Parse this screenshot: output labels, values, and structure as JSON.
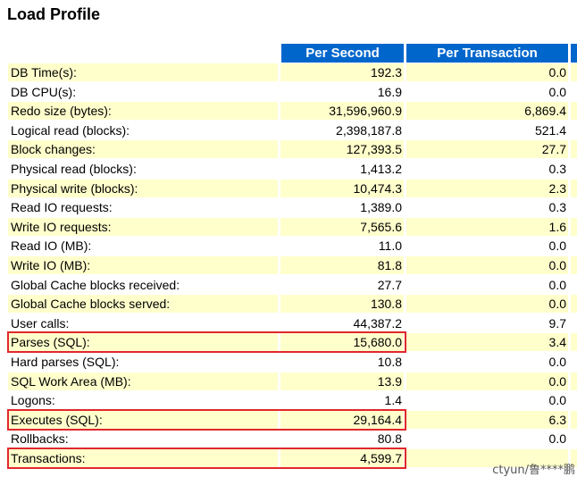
{
  "title": "Load Profile",
  "columns": {
    "per_second": "Per Second",
    "per_transaction": "Per Transaction"
  },
  "rows": [
    {
      "label": "DB Time(s):",
      "per_second": "192.3",
      "per_transaction": "0.0"
    },
    {
      "label": "DB CPU(s):",
      "per_second": "16.9",
      "per_transaction": "0.0"
    },
    {
      "label": "Redo size (bytes):",
      "per_second": "31,596,960.9",
      "per_transaction": "6,869.4"
    },
    {
      "label": "Logical read (blocks):",
      "per_second": "2,398,187.8",
      "per_transaction": "521.4"
    },
    {
      "label": "Block changes:",
      "per_second": "127,393.5",
      "per_transaction": "27.7"
    },
    {
      "label": "Physical read (blocks):",
      "per_second": "1,413.2",
      "per_transaction": "0.3"
    },
    {
      "label": "Physical write (blocks):",
      "per_second": "10,474.3",
      "per_transaction": "2.3"
    },
    {
      "label": "Read IO requests:",
      "per_second": "1,389.0",
      "per_transaction": "0.3"
    },
    {
      "label": "Write IO requests:",
      "per_second": "7,565.6",
      "per_transaction": "1.6"
    },
    {
      "label": "Read IO (MB):",
      "per_second": "11.0",
      "per_transaction": "0.0"
    },
    {
      "label": "Write IO (MB):",
      "per_second": "81.8",
      "per_transaction": "0.0"
    },
    {
      "label": "Global Cache blocks received:",
      "per_second": "27.7",
      "per_transaction": "0.0"
    },
    {
      "label": "Global Cache blocks served:",
      "per_second": "130.8",
      "per_transaction": "0.0"
    },
    {
      "label": "User calls:",
      "per_second": "44,387.2",
      "per_transaction": "9.7"
    },
    {
      "label": "Parses (SQL):",
      "per_second": "15,680.0",
      "per_transaction": "3.4"
    },
    {
      "label": "Hard parses (SQL):",
      "per_second": "10.8",
      "per_transaction": "0.0"
    },
    {
      "label": "SQL Work Area (MB):",
      "per_second": "13.9",
      "per_transaction": "0.0"
    },
    {
      "label": "Logons:",
      "per_second": "1.4",
      "per_transaction": "0.0"
    },
    {
      "label": "Executes (SQL):",
      "per_second": "29,164.4",
      "per_transaction": "6.3"
    },
    {
      "label": "Rollbacks:",
      "per_second": "80.8",
      "per_transaction": "0.0"
    },
    {
      "label": "Transactions:",
      "per_second": "4,599.7",
      "per_transaction": ""
    }
  ],
  "highlighted_rows": [
    "Parses (SQL):",
    "Executes (SQL):",
    "Transactions:"
  ],
  "colors": {
    "header_bg": "#0066cc",
    "header_text": "#ffffff",
    "row_shade": "#ffffcc",
    "highlight_border": "#e0282d"
  },
  "watermark": "ctyun/鲁****鹏"
}
